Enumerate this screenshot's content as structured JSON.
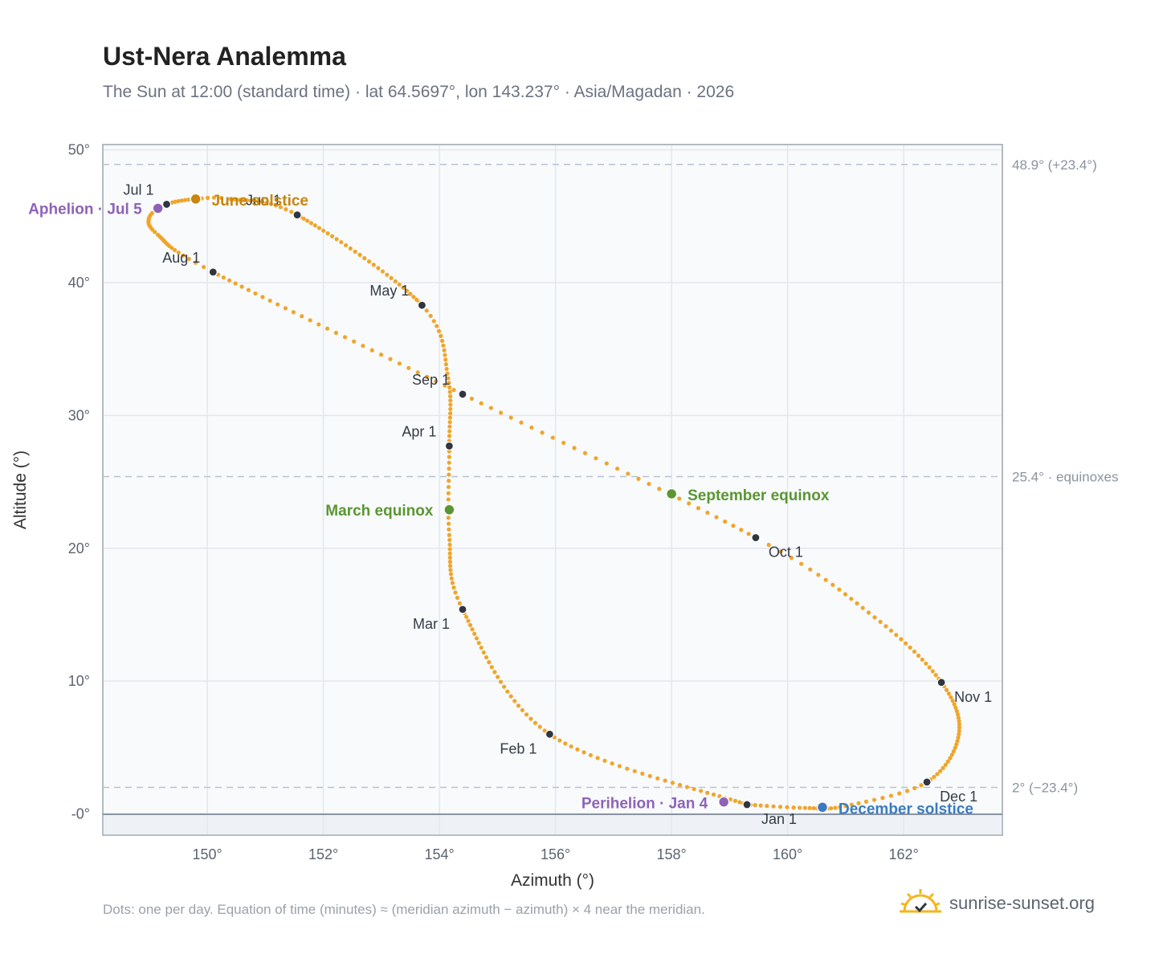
{
  "title": "Ust-Nera Analemma",
  "subtitle": "The Sun at 12:00 (standard time) · lat 64.5697°, lon 143.237° · Asia/Magadan · 2026",
  "footnote": "Dots: one per day. Equation of time (minutes) ≈ (meridian azimuth − azimuth) × 4 near the meridian.",
  "brand": {
    "text": "sunrise-sunset.org",
    "icon": "sun-check-icon",
    "color": "#f3b61f"
  },
  "chart_data": {
    "type": "scatter",
    "xlabel": "Azimuth (°)",
    "ylabel": "Altitude (°)",
    "xlim": [
      148.2,
      163.7
    ],
    "ylim": [
      -1.6,
      50.4
    ],
    "x_ticks": [
      150,
      152,
      154,
      156,
      158,
      160,
      162
    ],
    "x_tick_labels": [
      "150°",
      "152°",
      "154°",
      "156°",
      "158°",
      "160°",
      "162°"
    ],
    "y_ticks": [
      0,
      10,
      20,
      30,
      40,
      50
    ],
    "y_tick_labels": [
      "-0°",
      "10°",
      "20°",
      "30°",
      "40°",
      "50°"
    ],
    "grid": true,
    "colors": {
      "dots": "#f0a52a",
      "month_marker": "#2f3640",
      "solstice_june": "#c8860e",
      "solstice_december": "#3a7bbf",
      "equinox": "#5a9632",
      "apsis": "#8e63b5",
      "ref_line": "#b8c2cf"
    },
    "reference_lines": [
      {
        "y": 48.9,
        "label": "48.9° (+23.4°)"
      },
      {
        "y": 25.4,
        "label": "25.4° · equinoxes"
      },
      {
        "y": 2.0,
        "label": "2° (−23.4°)"
      }
    ],
    "month_markers": [
      {
        "label": "Jan 1",
        "az": 159.3,
        "alt": 0.7
      },
      {
        "label": "Feb 1",
        "az": 155.9,
        "alt": 6.0
      },
      {
        "label": "Mar 1",
        "az": 154.4,
        "alt": 15.4
      },
      {
        "label": "Apr 1",
        "az": 154.17,
        "alt": 27.7
      },
      {
        "label": "May 1",
        "az": 153.7,
        "alt": 38.3
      },
      {
        "label": "Jun 1",
        "az": 151.55,
        "alt": 45.1
      },
      {
        "label": "Jul 1",
        "az": 149.3,
        "alt": 45.9
      },
      {
        "label": "Aug 1",
        "az": 150.1,
        "alt": 40.8
      },
      {
        "label": "Sep 1",
        "az": 154.4,
        "alt": 31.6
      },
      {
        "label": "Oct 1",
        "az": 159.45,
        "alt": 20.8
      },
      {
        "label": "Nov 1",
        "az": 162.65,
        "alt": 9.9
      },
      {
        "label": "Dec 1",
        "az": 162.4,
        "alt": 2.4
      }
    ],
    "events": [
      {
        "label": "June solstice",
        "az": 149.8,
        "alt": 46.3,
        "kind": "solstice_june"
      },
      {
        "label": "December solstice",
        "az": 160.6,
        "alt": 0.5,
        "kind": "solstice_december"
      },
      {
        "label": "March equinox",
        "az": 154.17,
        "alt": 22.9,
        "kind": "equinox"
      },
      {
        "label": "September equinox",
        "az": 158.0,
        "alt": 24.1,
        "kind": "equinox"
      },
      {
        "label": "Aphelion · Jul 5",
        "az": 149.15,
        "alt": 45.6,
        "kind": "apsis"
      },
      {
        "label": "Perihelion · Jan 4",
        "az": 158.9,
        "alt": 0.9,
        "kind": "apsis"
      }
    ]
  }
}
